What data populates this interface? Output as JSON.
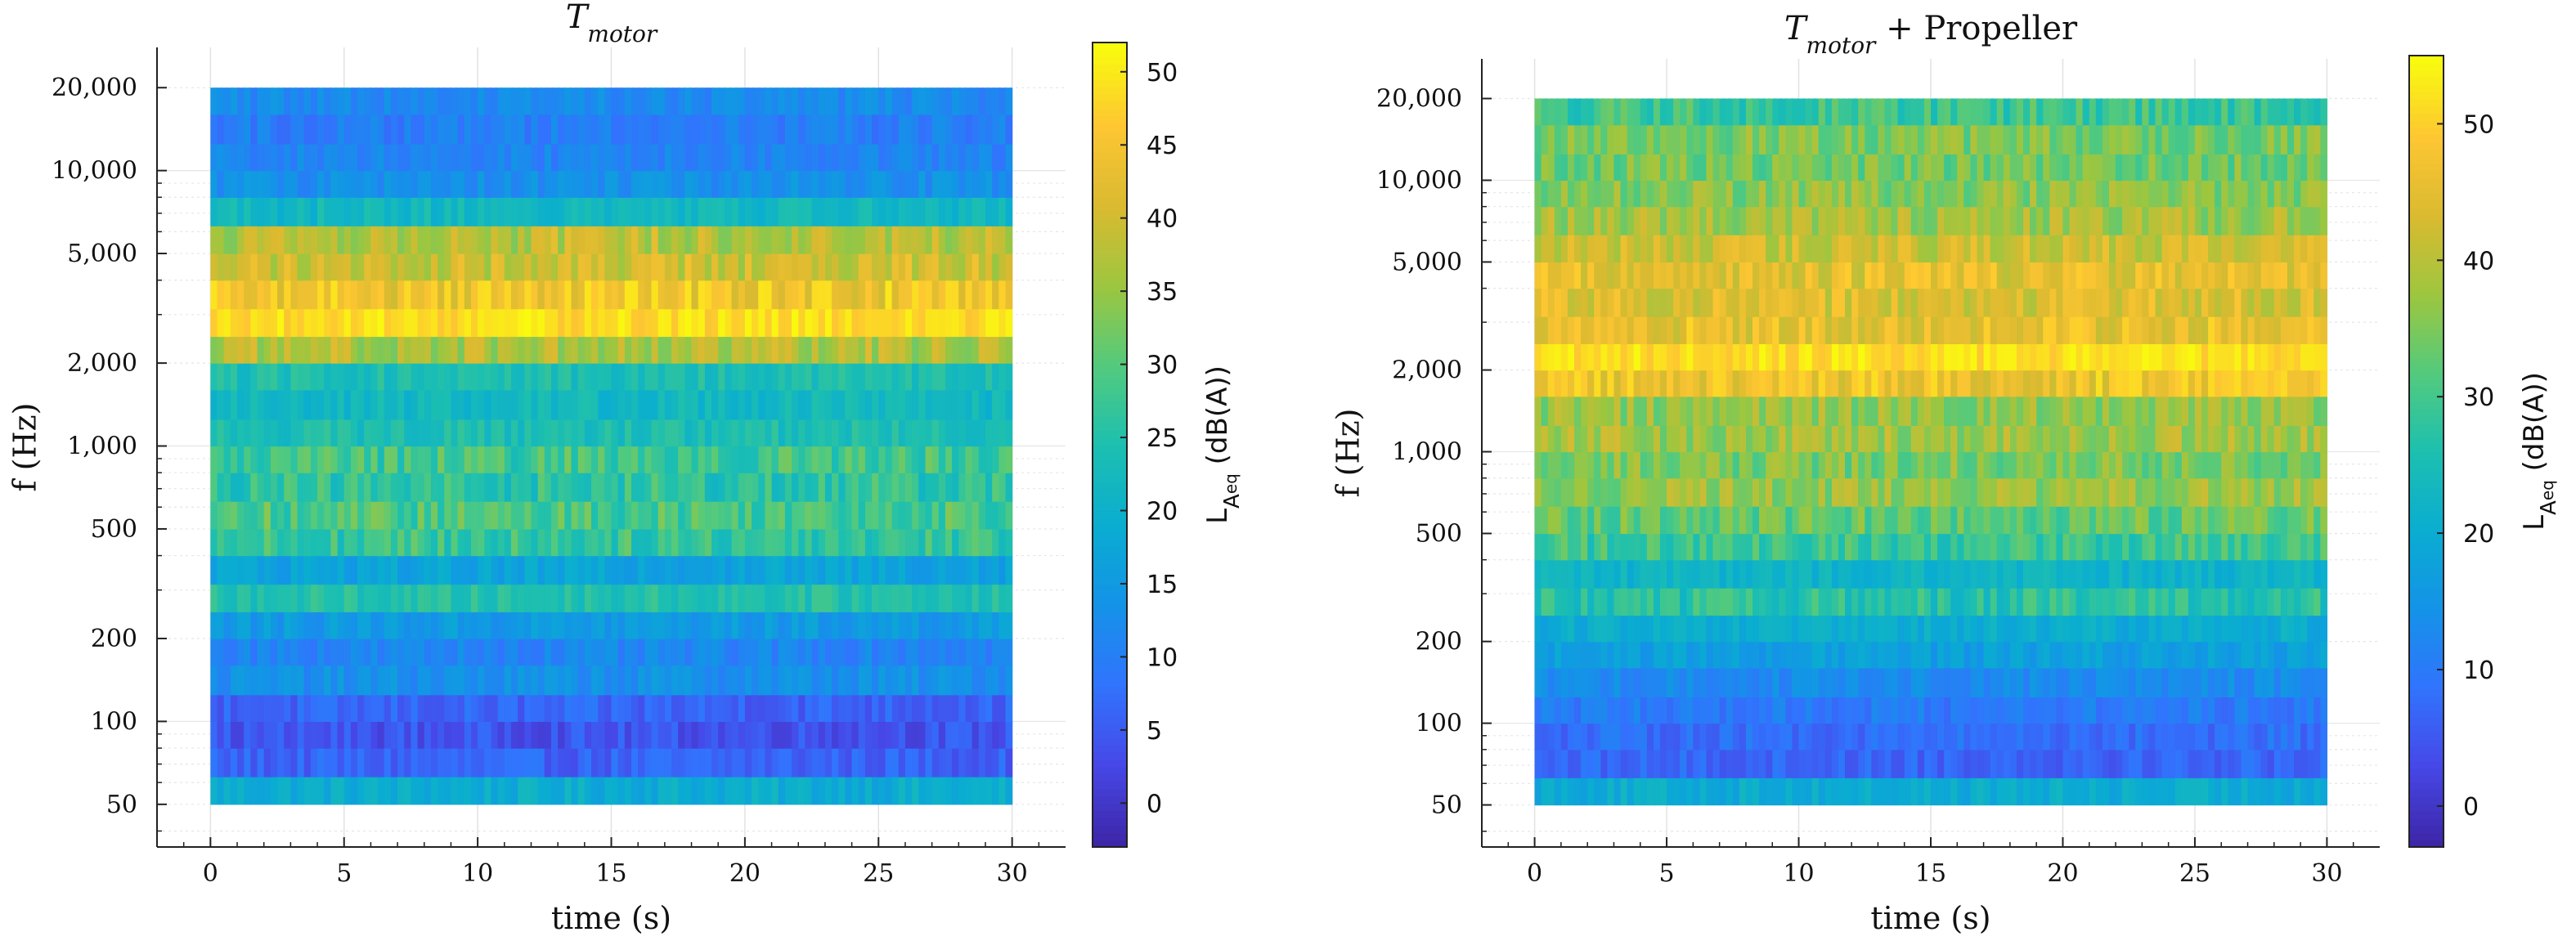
{
  "chart_data": [
    {
      "type": "heatmap",
      "title": {
        "main": "T",
        "sub": "motor",
        "suffix": ""
      },
      "xlabel": "time (s)",
      "ylabel": "f  (Hz)",
      "x_range": [
        0,
        30
      ],
      "xlim": [
        -2,
        32
      ],
      "x_ticks": [
        "0",
        "5",
        "10",
        "15",
        "20",
        "25",
        "30"
      ],
      "y_scale": "log",
      "ylim": [
        35,
        28000
      ],
      "y_ticks": [
        {
          "value": 50,
          "label": "50"
        },
        {
          "value": 100,
          "label": "100"
        },
        {
          "value": 200,
          "label": "200"
        },
        {
          "value": 500,
          "label": "500"
        },
        {
          "value": 1000,
          "label": "1,000"
        },
        {
          "value": 2000,
          "label": "2,000"
        },
        {
          "value": 5000,
          "label": "5,000"
        },
        {
          "value": 10000,
          "label": "10,000"
        },
        {
          "value": 20000,
          "label": "20,000"
        }
      ],
      "grid": true,
      "band_edges_hz": [
        50,
        63,
        80,
        100,
        125,
        160,
        200,
        250,
        315,
        400,
        500,
        630,
        800,
        1000,
        1250,
        1600,
        2000,
        2500,
        3150,
        4000,
        5000,
        6300,
        8000,
        10000,
        12500,
        16000,
        20000
      ],
      "band_levels_dB": [
        19,
        6,
        4,
        6,
        13,
        11,
        15,
        25,
        17,
        27,
        29,
        26,
        28,
        24,
        22,
        24,
        37,
        49,
        45,
        40,
        38,
        22,
        13,
        11,
        10,
        12,
        8
      ],
      "time_bins": 120,
      "colorbar": {
        "label_main": "L",
        "label_sub": "A",
        "label_subsub": "eq",
        "label_unit": "  (dB(A))",
        "range": [
          -3,
          52
        ],
        "ticks": [
          0,
          5,
          10,
          15,
          20,
          25,
          30,
          35,
          40,
          45,
          50
        ],
        "colormap": "parula"
      }
    },
    {
      "type": "heatmap",
      "title": {
        "main": "T",
        "sub": "motor",
        "suffix": " + Propeller"
      },
      "xlabel": "time (s)",
      "ylabel": "f  (Hz)",
      "x_range": [
        0,
        30
      ],
      "xlim": [
        -2,
        32
      ],
      "x_ticks": [
        "0",
        "5",
        "10",
        "15",
        "20",
        "25",
        "30"
      ],
      "y_scale": "log",
      "ylim": [
        35,
        28000
      ],
      "y_ticks": [
        {
          "value": 50,
          "label": "50"
        },
        {
          "value": 100,
          "label": "100"
        },
        {
          "value": 200,
          "label": "200"
        },
        {
          "value": 500,
          "label": "500"
        },
        {
          "value": 1000,
          "label": "1,000"
        },
        {
          "value": 2000,
          "label": "2,000"
        },
        {
          "value": 5000,
          "label": "5,000"
        },
        {
          "value": 10000,
          "label": "10,000"
        },
        {
          "value": 20000,
          "label": "20,000"
        }
      ],
      "grid": true,
      "band_edges_hz": [
        50,
        63,
        80,
        100,
        125,
        160,
        200,
        250,
        315,
        400,
        500,
        630,
        800,
        1000,
        1250,
        1600,
        2000,
        2500,
        3150,
        4000,
        5000,
        6300,
        8000,
        10000,
        12500,
        16000,
        20000
      ],
      "band_levels_dB": [
        20,
        7,
        8,
        10,
        13,
        17,
        20,
        27,
        22,
        29,
        33,
        37,
        35,
        38,
        37,
        47,
        52,
        46,
        44,
        45,
        42,
        38,
        36,
        34,
        35,
        29,
        24
      ],
      "time_bins": 120,
      "colorbar": {
        "label_main": "L",
        "label_sub": "A",
        "label_subsub": "eq",
        "label_unit": "  (dB(A))",
        "range": [
          -3,
          55
        ],
        "ticks": [
          0,
          10,
          20,
          30,
          40,
          50
        ],
        "colormap": "parula"
      }
    }
  ]
}
